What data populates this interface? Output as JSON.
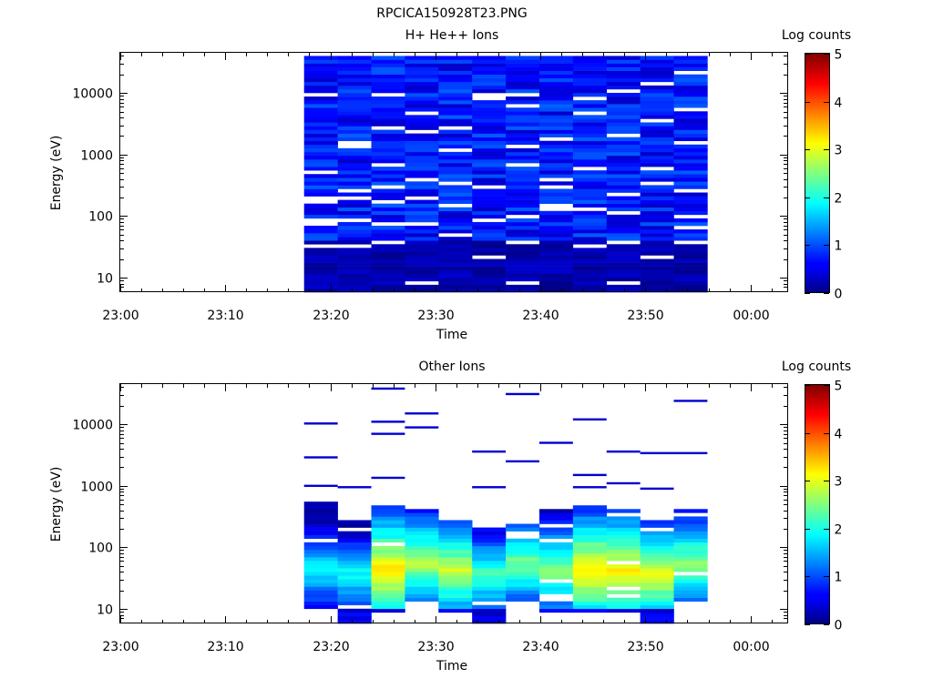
{
  "figure": {
    "title": "RPCICA150928T23.PNG",
    "colorbar_min": 0,
    "colorbar_max": 5
  },
  "chart_data": [
    {
      "type": "heatmap",
      "title": "H+ He++ Ions",
      "xlabel": "Time",
      "ylabel": "Energy (eV)",
      "colorbar_label": "Log counts",
      "x_axis": {
        "range_minutes": [
          0,
          63.5
        ],
        "ticks": [
          0,
          10,
          20,
          30,
          40,
          50,
          60
        ],
        "tick_labels": [
          "23:00",
          "23:10",
          "23:20",
          "23:30",
          "23:40",
          "23:50",
          "00:00"
        ]
      },
      "y_axis": {
        "scale": "log",
        "range": [
          5.8,
          45000
        ],
        "ticks": [
          10,
          100,
          1000,
          10000
        ],
        "tick_labels": [
          "10",
          "100",
          "1000",
          "10000"
        ]
      },
      "colorbar_ticks": [
        "0",
        "1",
        "2",
        "3",
        "4",
        "5"
      ],
      "columns_minutes": [
        17.5,
        20.7,
        23.9,
        27.1,
        30.3,
        33.5,
        36.7,
        39.9,
        43.1,
        46.3,
        49.5,
        52.7,
        55.9
      ],
      "energy_range_eV": [
        5.8,
        40000
      ],
      "value_range": [
        0,
        1
      ],
      "gap_rows_eV": {
        "0": [
          9500,
          195,
          90,
          34,
          75,
          160,
          500
        ],
        "1": [
          1550,
          250,
          1300,
          90,
          195,
          34
        ],
        "2": [
          9200,
          640,
          2900,
          310,
          75,
          165,
          36
        ],
        "3": [
          4800,
          210,
          78,
          2400,
          390,
          8
        ],
        "4": [
          2700,
          1200,
          350,
          150,
          52
        ],
        "5": [
          7900,
          315,
          90,
          9000,
          22
        ],
        "6": [
          9900,
          6400,
          100,
          36,
          1400,
          650,
          8
        ],
        "7": [
          1900,
          300,
          140,
          130,
          410
        ],
        "8": [
          8300,
          580,
          135,
          5000,
          33
        ],
        "9": [
          11000,
          120,
          2100,
          38,
          220,
          8
        ],
        "10": [
          600,
          3600,
          330,
          22,
          14000
        ],
        "11": [
          22000,
          5700,
          1500,
          260,
          95,
          36,
          64
        ]
      }
    },
    {
      "type": "heatmap",
      "title": "Other Ions",
      "xlabel": "Time",
      "ylabel": "Energy (eV)",
      "colorbar_label": "Log counts",
      "x_axis": {
        "range_minutes": [
          0,
          63.5
        ],
        "ticks": [
          0,
          10,
          20,
          30,
          40,
          50,
          60
        ],
        "tick_labels": [
          "23:00",
          "23:10",
          "23:20",
          "23:30",
          "23:40",
          "23:50",
          "00:00"
        ]
      },
      "y_axis": {
        "scale": "log",
        "range": [
          5.8,
          45000
        ],
        "ticks": [
          10,
          100,
          1000,
          10000
        ],
        "tick_labels": [
          "10",
          "100",
          "1000",
          "10000"
        ]
      },
      "colorbar_ticks": [
        "0",
        "1",
        "2",
        "3",
        "4",
        "5"
      ],
      "columns_minutes": [
        17.5,
        20.7,
        23.9,
        27.1,
        30.3,
        33.5,
        36.7,
        39.9,
        43.1,
        46.3,
        49.5,
        52.7,
        55.9
      ],
      "sparse_lines": [
        {
          "col": 0,
          "eV": 10300
        },
        {
          "col": 0,
          "eV": 2900
        },
        {
          "col": 0,
          "eV": 1000
        },
        {
          "col": 1,
          "eV": 950
        },
        {
          "col": 2,
          "eV": 38000
        },
        {
          "col": 2,
          "eV": 11000
        },
        {
          "col": 2,
          "eV": 7000
        },
        {
          "col": 2,
          "eV": 1350
        },
        {
          "col": 3,
          "eV": 15000
        },
        {
          "col": 3,
          "eV": 8900
        },
        {
          "col": 5,
          "eV": 3600
        },
        {
          "col": 5,
          "eV": 950
        },
        {
          "col": 6,
          "eV": 31000
        },
        {
          "col": 6,
          "eV": 2500
        },
        {
          "col": 7,
          "eV": 5000
        },
        {
          "col": 8,
          "eV": 12000
        },
        {
          "col": 8,
          "eV": 1500
        },
        {
          "col": 8,
          "eV": 950
        },
        {
          "col": 9,
          "eV": 3600
        },
        {
          "col": 9,
          "eV": 1100
        },
        {
          "col": 10,
          "eV": 3400
        },
        {
          "col": 10,
          "eV": 900
        },
        {
          "col": 11,
          "eV": 24000
        },
        {
          "col": 11,
          "eV": 3400
        }
      ],
      "dense_columns": [
        {
          "col": 0,
          "bottom_eV": 9,
          "top_eV": 520,
          "peak": 2.0
        },
        {
          "col": 1,
          "bottom_eV": 6,
          "top_eV": 270,
          "peak": 2.0
        },
        {
          "col": 2,
          "bottom_eV": 9,
          "top_eV": 420,
          "peak": 3.3
        },
        {
          "col": 3,
          "bottom_eV": 15,
          "top_eV": 410,
          "peak": 2.8
        },
        {
          "col": 4,
          "bottom_eV": 9,
          "top_eV": 300,
          "peak": 2.9
        },
        {
          "col": 5,
          "bottom_eV": 6,
          "top_eV": 200,
          "peak": 2.3
        },
        {
          "col": 6,
          "bottom_eV": 15,
          "top_eV": 250,
          "peak": 2.5
        },
        {
          "col": 7,
          "bottom_eV": 9,
          "top_eV": 390,
          "peak": 2.6
        },
        {
          "col": 8,
          "bottom_eV": 9,
          "top_eV": 420,
          "peak": 3.3
        },
        {
          "col": 9,
          "bottom_eV": 9,
          "top_eV": 380,
          "peak": 3.2
        },
        {
          "col": 10,
          "bottom_eV": 6,
          "top_eV": 270,
          "peak": 3.0
        },
        {
          "col": 11,
          "bottom_eV": 15,
          "top_eV": 380,
          "peak": 2.6
        }
      ]
    }
  ]
}
